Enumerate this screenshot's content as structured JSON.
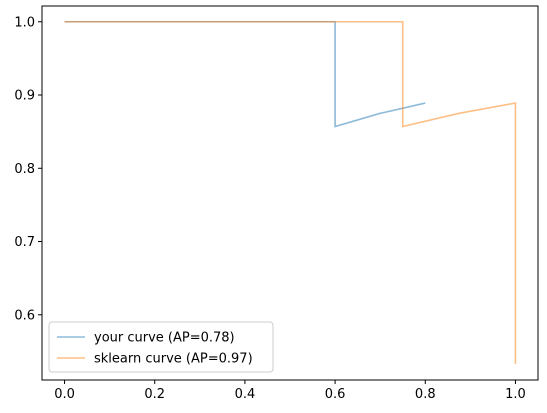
{
  "chart_data": {
    "type": "line",
    "title": "",
    "xlabel": "",
    "ylabel": "",
    "xlim": [
      -0.05,
      1.05
    ],
    "ylim": [
      0.511,
      1.0215
    ],
    "xticks": [
      0.0,
      0.2,
      0.4,
      0.6,
      0.8,
      1.0
    ],
    "xtick_labels": [
      "0.0",
      "0.2",
      "0.4",
      "0.6",
      "0.8",
      "1.0"
    ],
    "yticks": [
      0.6,
      0.7,
      0.8,
      0.9,
      1.0
    ],
    "ytick_labels": [
      "0.6",
      "0.7",
      "0.8",
      "0.9",
      "1.0"
    ],
    "grid": false,
    "legend_position": "lower-left",
    "series": [
      {
        "name": "your curve (AP=0.78)",
        "color": "#1f77b4",
        "x": [
          0.0,
          0.2,
          0.4,
          0.6,
          0.6,
          0.7,
          0.8
        ],
        "y": [
          1.0,
          1.0,
          1.0,
          1.0,
          0.857,
          0.875,
          0.889
        ]
      },
      {
        "name": "sklearn curve (AP=0.97)",
        "color": "#ff7f0e",
        "x": [
          0.0,
          0.25,
          0.5,
          0.75,
          0.75,
          0.875,
          1.0,
          1.0
        ],
        "y": [
          1.0,
          1.0,
          1.0,
          1.0,
          0.857,
          0.875,
          0.889,
          0.533
        ]
      }
    ]
  }
}
